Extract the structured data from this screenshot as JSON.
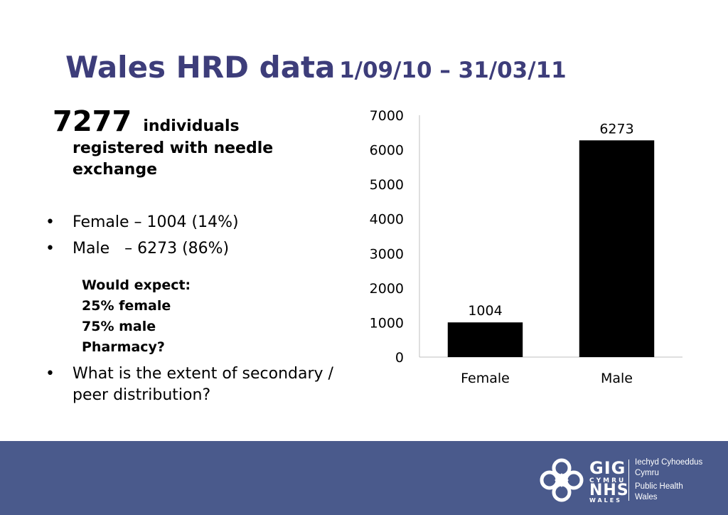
{
  "title": {
    "main": "Wales HRD data",
    "dates": "1/09/10 – 31/03/11"
  },
  "headline": {
    "number": "7277",
    "label": "individuals",
    "rest": "registered with needle exchange"
  },
  "bullets": [
    "Female – 1004 (14%)",
    "Male   – 6273 (86%)",
    "What is the extent of secondary / peer distribution?"
  ],
  "bullet_char": "•",
  "expect": [
    "Would expect:",
    "25% female",
    "75% male",
    "Pharmacy?"
  ],
  "chart_data": {
    "type": "bar",
    "categories": [
      "Female",
      "Male"
    ],
    "values": [
      1004,
      6273
    ],
    "data_labels": [
      "1004",
      "6273"
    ],
    "y_ticks": [
      0,
      1000,
      2000,
      3000,
      4000,
      5000,
      6000,
      7000
    ],
    "ylim": [
      0,
      7000
    ],
    "title": "",
    "xlabel": "",
    "ylabel": "",
    "grid": false,
    "bar_color": "#000000"
  },
  "footer": {
    "color": "#4a5a8c",
    "logo": {
      "gig": "GIG",
      "cymru": "CYMRU",
      "nhs": "NHS",
      "wales": "WALES",
      "lines": [
        "Iechyd Cyhoeddus",
        "Cymru",
        "Public Health",
        "Wales"
      ]
    }
  }
}
